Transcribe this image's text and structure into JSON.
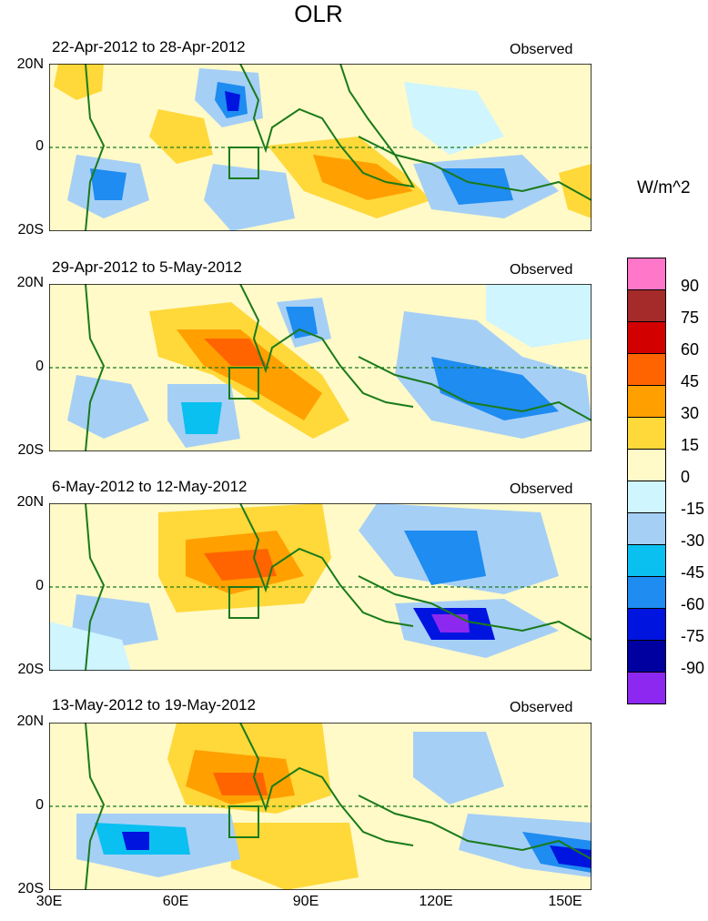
{
  "title": "OLR",
  "units": "W/m^2",
  "lat_labels": [
    "20N",
    "0",
    "20S"
  ],
  "lon_labels": [
    "30E",
    "60E",
    "90E",
    "120E",
    "150E"
  ],
  "panels": [
    {
      "date_range": "22-Apr-2012 to 28-Apr-2012",
      "tag": "Observed"
    },
    {
      "date_range": "29-Apr-2012 to 5-May-2012",
      "tag": "Observed"
    },
    {
      "date_range": "6-May-2012 to 12-May-2012",
      "tag": "Observed"
    },
    {
      "date_range": "13-May-2012 to 19-May-2012",
      "tag": "Observed"
    }
  ],
  "colorbar": {
    "colors": [
      "#ff77c8",
      "#a52a2a",
      "#d30000",
      "#ff6400",
      "#ffa000",
      "#ffd83a",
      "#fffac8",
      "#cff5ff",
      "#a6cff6",
      "#0ac0f0",
      "#1e8cf0",
      "#0014e0",
      "#0000a0",
      "#8c28f0"
    ],
    "ticks": [
      "90",
      "75",
      "60",
      "45",
      "30",
      "15",
      "0",
      "-15",
      "-30",
      "-45",
      "-60",
      "-75",
      "-90"
    ]
  },
  "colors": {
    "coastline": "#1a7a1a",
    "background": "#fffac8"
  }
}
